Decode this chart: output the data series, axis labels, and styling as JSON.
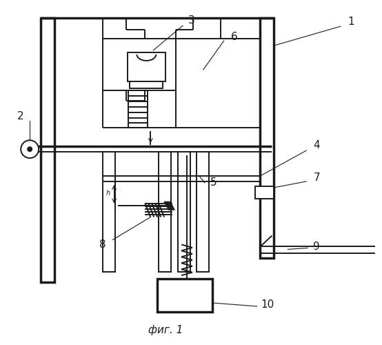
{
  "bg_color": "#ffffff",
  "line_color": "#1a1a1a",
  "caption": "фиг. 1",
  "lw": 1.4,
  "tlw": 2.5
}
